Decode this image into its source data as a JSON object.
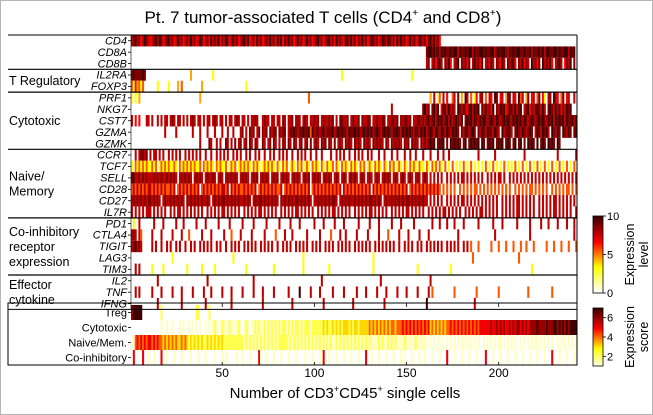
{
  "chart_data": {
    "type": "heatmap",
    "title": "Pt. 7 tumor-associated T cells (CD4",
    "title_sup1": "+",
    "title_mid": " and CD8",
    "title_sup2": "+",
    "title_end": ")",
    "xlabel": "Number of CD3",
    "xlabel_sup1": "+",
    "xlabel_mid": "CD45",
    "xlabel_sup2": "+",
    "xlabel_end": " single cells",
    "x_range": [
      1,
      242
    ],
    "x_ticks": [
      50,
      100,
      150,
      200
    ],
    "colormap": "hot (white-yellow-red-black)",
    "expression_colorbar": {
      "label_line1": "Expression",
      "label_line2": "level",
      "range": [
        0,
        10
      ],
      "ticks": [
        0,
        5,
        10
      ]
    },
    "score_colorbar": {
      "label_line1": "Expression",
      "label_line2": "score",
      "range": [
        1,
        7
      ],
      "ticks": [
        2,
        4,
        6
      ]
    },
    "groups": [
      {
        "label": [],
        "genes": [
          {
            "name": "CD4",
            "values": "78978679876789798678978679786787978679867869787968798679786789796786978678797869796879786797867978678978678978697876987978687978679878679879878697978679787698786897978600000000000000000000000000000000000000000000000000000000000000000000000000000000000"
          },
          {
            "name": "CD8A",
            "values": "0000000000000000000000000000000000000000000000000000000000000000000000000000000000000000000000000000000000000000000000000000000000000000000000000000000000000000899898979898898997988989979889989889978989987989899889889798898979988998988997989"
          },
          {
            "name": "CD8B",
            "values": "0000000000000000000000000000000000000000000000000000000000000000000000000000000000000000000000000000000000000000000000000000000000000000000000000000000000000000780786897087960789087868079786907869708769708789608796870978680978796078970687908"
          }
        ]
      },
      {
        "label": [
          "T Regulatory"
        ],
        "genes": [
          {
            "name": "IL2RA",
            "values": "89888898000000000000000000000000400000000000300000000000000000000000000000000000000000000000000000000000000000000030000000000000000000000000000000000000300000000000000000000000000000000000000000000000000000000000000000000000000000000000000"
          },
          {
            "name": "FOXP3",
            "values": "53645350000000300000300004050000000000400000000000000000000000300000000000000000000000000000000000000000000000000000000000000000000000000000000000000000000000000000000000000000000000000000000000000000000000000000000000000000000000000000000"
          }
        ]
      },
      {
        "label": [
          "Cytotoxic"
        ],
        "genes": [
          {
            "name": "PRF1",
            "values": "20304000000000000000000000000000000004000000000000000000000000000000000000000000000000000000000050000000000000000000000000000000000000000000000000000000000000000040702507060057080409705036078050760980670488076095704806705806307809760580670070"
          },
          {
            "name": "NKG7",
            "values": "00000000000000000000000000000000000000000000000000000000000000000000000000000000000000000000000000000000000000000000000000000000000000000000070000000000000000897808979069879787098797689798908797869087989679879789078968789879708987979687989"
          },
          {
            "name": "CST7",
            "values": "70606000770700707077078707707070787077070770787077070770787077070778700787707707708707780787078707787807877878070887780787780877880778778807788780878878077887878978979897897978987908989798798987898798789898798989798789878989879897989897988979898798"
          },
          {
            "name": "GZMA",
            "values": "00000000000000000070000070000000070007000700070007007007000780708780780878087880878807889878898895978878978889789898879889897898989789878989879898798989879879897898798798798798980879878980879879887987097889708987987898079879897098798098798089789879897908"
          },
          {
            "name": "GZMK",
            "values": "00000000000000000000000000000000000007000087007070087070807807808708700870780870708708708707807808078708780870807870878708787087870878787087087878708780878708787898908989080989898089089898909808989089890898089089080989809089809898098"
          }
        ]
      },
      {
        "label": [
          "Naive/",
          "Memory"
        ],
        "genes": [
          {
            "name": "CCR7",
            "values": "00707887807077070700707070700707070707007007007070707007070700707007070070070700707070070070707007007007000070070707007007070700707000700700070070007007007000700070007007007000000000000000700000000700000000000000070000000000000000070000000007000000"
          },
          {
            "name": "TCF7",
            "values": "30535353533535035353533530535353535335053535305353350353503535353053530353535305305350353053503530535305305335053053530535305350353053530530535035305305353053305305350530503050303050305030303050305030305030305030503050305030503050305030503050305"
          },
          {
            "name": "SELL",
            "values": "89778787877787878778787870787878707878707877870787078787870787870787807878707878078787078787078780787870787870787078707878707870787078707878707870787078707870787070707070070707070770707070707007070707707007070707070707070707070707070707070707070"
          },
          {
            "name": "CD28",
            "values": "57575757577575757575575705757575757570575757575757757075757557575757057575757575570575757575757570575757575757575707575757575757570757575757575757575705757575757575757505050505005050505055050505050505050505005050505055050505050050505050550505050505"
          },
          {
            "name": "CD27",
            "values": "78787878788787870787787878787087878787877870787878878787878778787078788787878787087878787887878787077878787878870787878778787878788787870787787878787887878787877070707070070707070770707070707070707070070707070770707070700707070707707070707070"
          },
          {
            "name": "IL7R",
            "values": "70707070777070707070070707707070707070700707070707707070707007070707077070707070070707070770707070700707070707707070707007070707077070707070070707070770707070700707070707707070707007070707077070707070070707070770707070700707070707707070707007"
          }
        ]
      },
      {
        "label": [
          "Co-inhibitory",
          "receptor",
          "expression"
        ],
        "genes": [
          {
            "name": "PD1",
            "values": "03007000000070000700000070007000000700007000000700000700000070000070000007000000700000700007000000070000700000700007000000070000070000700000070000700000070000000007000700070007000070000000700000007000070000000700000070000070007000070000700070000"
          },
          {
            "name": "CTLA4",
            "values": "78707500000700007000007000070005000000700007000000700050000700000700000070000050000700070000000700000070000050000700700000700000700000700005000007000070000070000700000000000000070000000000000000000700000000000000000070000000000000000000000070000000"
          },
          {
            "name": "TIGIT",
            "values": "78978700000707007007070070700700707007070707007070070070707007070707007070707007007070700707070700707070070707007070707007070707070070707070707007007070700707007070707070070707070070705000500000050005000500050005005000500000050005000500050005005000500"
          },
          {
            "name": "LAG3",
            "values": "00000000000000000000003000000000000000000000000000000003000000000000000000000000000000000000030000000000000000000000000000000000000300000000000000000000000000000000000000000000000000000500000000000000000000000050000000000000000000000000000000000"
          },
          {
            "name": "TIM3",
            "values": "00707000000300000300000000000030000000300000030000000000000000300000000000000300000000000000030000000000000300000000000000000000000300000000000000000000000300000000000000000300000000000000000000000000000000000000000003000000000000000000000000000"
          }
        ]
      },
      {
        "label": [
          "Effector",
          "cytokine"
        ],
        "genes": [
          {
            "name": "IL2",
            "values": "00000000000000700000000000000000000000000700000000000000000000000070000000000000000000000000000000000007000000000000000000000000000000070000000000000000000000000070000000000000000000000000000000000000000000000000000000000000000000000000000000000"
          },
          {
            "name": "TNF",
            "values": "00707000000700007000007000070000070000070007000007000070000070000070000700000700000007000009000007000070000007000007000000700007000007000070000070000700000700000705000000000005000000000005000000000005000000000000000500000000000050000000000000000000"
          },
          {
            "name": "IFNG",
            "values": "00000000000000700000000000070000000000007000000000000070000000000000000700000000000000070000000000000000700000000000000070000000000000000700000000000000000000009000000000000000000000000070000000000000000000000000000000000000000000000000000000000000"
          }
        ]
      }
    ],
    "scores": [
      {
        "name": "Treg",
        "values": "67777700000000002000000000000000000220000020000000000000000000000000000000000000000000000000000000000000000000000000000000000000000000000000000000000000000000000000000000000000000000000000000000000000000000000000000000000000000000000000000000000"
      },
      {
        "name": "Cytotoxic",
        "values": "00000000000000001001001000101001010101001010121012111210112101210112121121212121212212121221212221222222323223232323332323323333343434343434344344454545454545454534343434344545454545454545455555565565656556565665656566667666676667767676767777777777"
      },
      {
        "name": "Naive/Mem.",
        "values": "10454545455454544343434343343432323232322323232323222222222221212121212121212121222221212121212121212121212121121212121212121212121111212112121211112111112111111010101010010101010110101010100101010101101010101001010101011010101010010101010101"
      },
      {
        "name": "Co-inhibitory",
        "values": "05000050010010005001000100010000100010001000010001010000010010001000051001000100010001000100001000100010500100010001000100010005001000100010001000101000100010010001000100050001000100010001000050001000100010001000100010001000100050001000100010001"
      }
    ]
  }
}
